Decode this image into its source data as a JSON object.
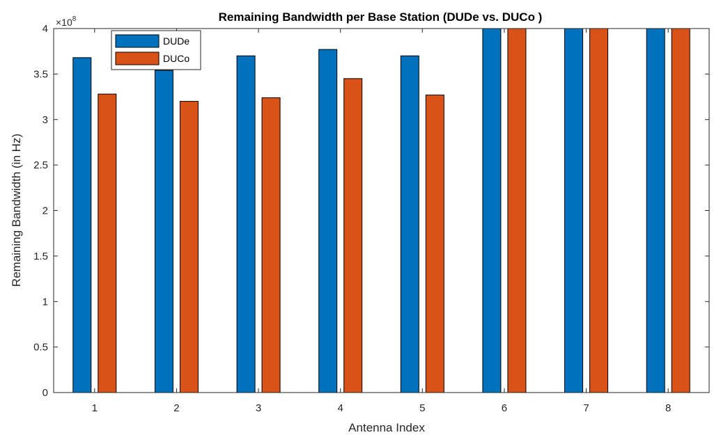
{
  "chart_data": {
    "type": "bar",
    "title": "Remaining Bandwidth per Base Station (DUDe vs. DUCo )",
    "xlabel": "Antenna Index",
    "ylabel": "Remaining Bandwidth (in Hz)",
    "y_exponent_base": "×10",
    "y_exponent_power": "8",
    "categories": [
      "1",
      "2",
      "3",
      "4",
      "5",
      "6",
      "7",
      "8"
    ],
    "series": [
      {
        "name": "DUDe",
        "color": "#0072BD",
        "values": [
          3.68,
          3.54,
          3.7,
          3.77,
          3.7,
          4.0,
          4.0,
          4.0
        ]
      },
      {
        "name": "DUCo",
        "color": "#D95319",
        "values": [
          3.28,
          3.2,
          3.24,
          3.45,
          3.27,
          4.0,
          4.0,
          4.0
        ]
      }
    ],
    "ylim": [
      0,
      4
    ],
    "yticks": [
      "0",
      "0.5",
      "1",
      "1.5",
      "2",
      "2.5",
      "3",
      "3.5",
      "4"
    ],
    "grid": false,
    "legend_position": "top-left"
  }
}
